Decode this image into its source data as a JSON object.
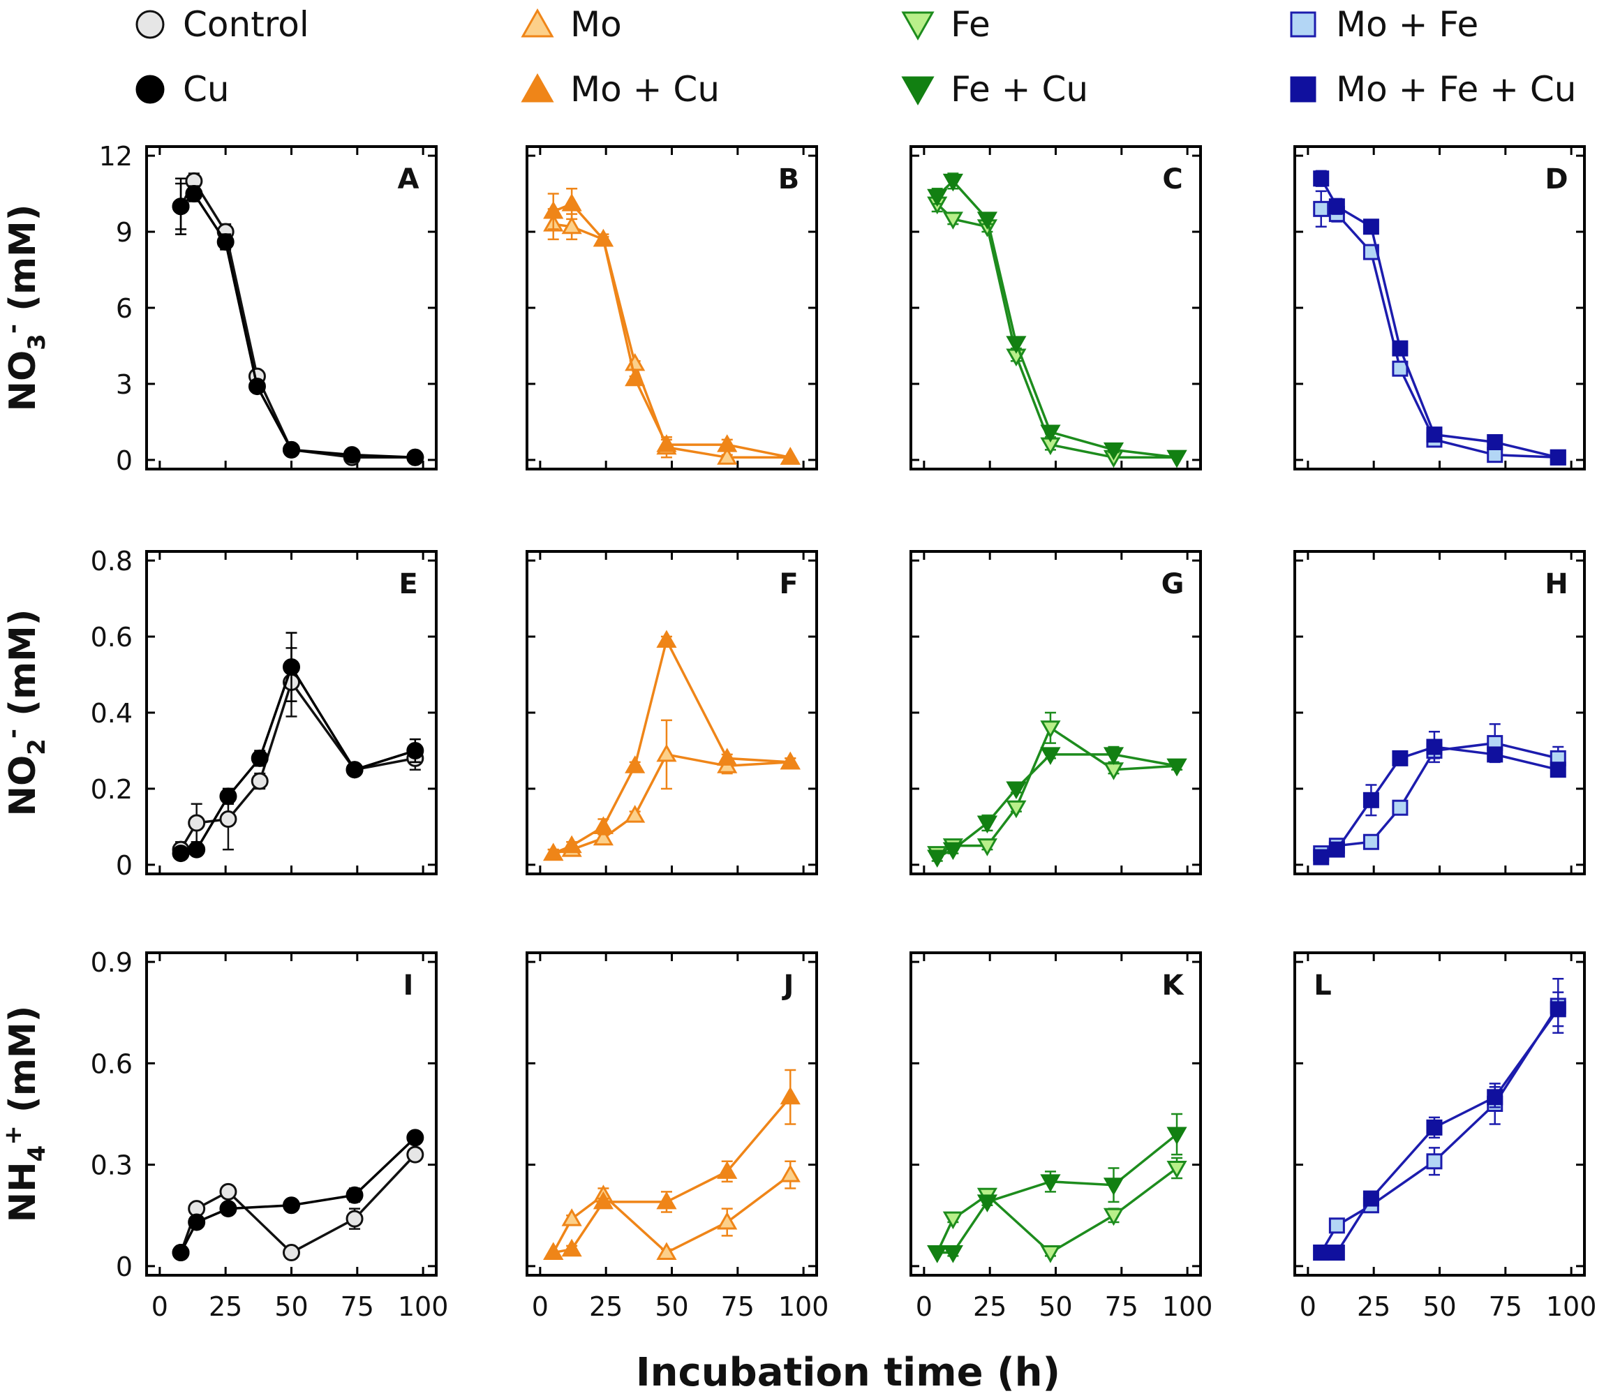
{
  "figure": {
    "xlabel": "Incubation time (h)",
    "row_labels": [
      {
        "main": "NO",
        "sub": "3",
        "sup": "-",
        "unit": " (mM)"
      },
      {
        "main": "NO",
        "sub": "2",
        "sup": "-",
        "unit": " (mM)"
      },
      {
        "main": "NH",
        "sub": "4",
        "sup": "+",
        "unit": " (mM)"
      }
    ]
  },
  "legend": [
    {
      "label": "Control",
      "marker": "circle",
      "fill": "#e6e6e6",
      "stroke": "#111111"
    },
    {
      "label": "Cu",
      "marker": "circle",
      "fill": "#000000",
      "stroke": "#000000"
    },
    {
      "label": "Mo",
      "marker": "triangle-up",
      "fill": "#fcd08a",
      "stroke": "#ef8518"
    },
    {
      "label": "Mo + Cu",
      "marker": "triangle-up",
      "fill": "#ef8518",
      "stroke": "#ef8518"
    },
    {
      "label": "Fe",
      "marker": "triangle-down",
      "fill": "#b9ef8a",
      "stroke": "#1d8c1d"
    },
    {
      "label": "Fe + Cu",
      "marker": "triangle-down",
      "fill": "#128012",
      "stroke": "#128012"
    },
    {
      "label": "Mo + Fe",
      "marker": "square",
      "fill": "#b3d6f5",
      "stroke": "#1c1cad"
    },
    {
      "label": "Mo + Fe + Cu",
      "marker": "square",
      "fill": "#10109e",
      "stroke": "#10109e"
    }
  ],
  "colors": {
    "control_line": "#111111",
    "cu_line": "#000000",
    "mo_line": "#ef8518",
    "fe_line": "#1d8c1d",
    "mofe_line": "#1c1cad"
  },
  "chart_data": [
    {
      "type": "line",
      "panel": "A",
      "row": 0,
      "col": 0,
      "xlim": [
        0,
        100
      ],
      "ylim": [
        0,
        12
      ],
      "yticks": [
        0,
        3,
        6,
        9,
        12
      ],
      "xticks": [
        0,
        25,
        50,
        75,
        100
      ],
      "series": [
        {
          "name": "Control",
          "x": [
            8,
            13,
            25,
            37,
            50,
            73,
            97
          ],
          "y": [
            10.0,
            11.0,
            9.0,
            3.3,
            0.4,
            0.1,
            0.1
          ],
          "err": [
            0.9,
            0.3,
            0.3,
            0.1,
            0,
            0,
            0
          ]
        },
        {
          "name": "Cu",
          "x": [
            8,
            13,
            25,
            37,
            50,
            73,
            97
          ],
          "y": [
            10.0,
            10.5,
            8.6,
            2.9,
            0.4,
            0.2,
            0.1
          ],
          "err": [
            1.1,
            0.3,
            0.3,
            0.1,
            0,
            0,
            0
          ]
        }
      ]
    },
    {
      "type": "line",
      "panel": "B",
      "row": 0,
      "col": 1,
      "xlim": [
        0,
        100
      ],
      "ylim": [
        0,
        12
      ],
      "yticks": [
        0,
        3,
        6,
        9,
        12
      ],
      "xticks": [
        0,
        25,
        50,
        75,
        100
      ],
      "series": [
        {
          "name": "Mo",
          "x": [
            5,
            12,
            24,
            36,
            48,
            71,
            95
          ],
          "y": [
            9.3,
            9.2,
            8.7,
            3.8,
            0.5,
            0.1,
            0.1
          ],
          "err": [
            0.6,
            0.5,
            0.2,
            0.1,
            0.4,
            0.1,
            0
          ]
        },
        {
          "name": "Mo + Cu",
          "x": [
            5,
            12,
            24,
            36,
            48,
            71,
            95
          ],
          "y": [
            9.8,
            10.1,
            8.7,
            3.2,
            0.6,
            0.6,
            0.1
          ],
          "err": [
            0.7,
            0.6,
            0.1,
            0.1,
            0.2,
            0.2,
            0
          ]
        }
      ]
    },
    {
      "type": "line",
      "panel": "C",
      "row": 0,
      "col": 2,
      "xlim": [
        0,
        100
      ],
      "ylim": [
        0,
        12
      ],
      "yticks": [
        0,
        3,
        6,
        9,
        12
      ],
      "xticks": [
        0,
        25,
        50,
        75,
        100
      ],
      "series": [
        {
          "name": "Fe",
          "x": [
            5,
            11,
            24,
            35,
            48,
            72,
            96
          ],
          "y": [
            10.1,
            9.5,
            9.2,
            4.1,
            0.6,
            0.1,
            0.1
          ],
          "err": [
            0.3,
            0.2,
            0.2,
            0.2,
            0.2,
            0,
            0
          ]
        },
        {
          "name": "Fe + Cu",
          "x": [
            5,
            11,
            24,
            35,
            48,
            72,
            96
          ],
          "y": [
            10.4,
            11.0,
            9.5,
            4.6,
            1.1,
            0.4,
            0.1
          ],
          "err": [
            0.3,
            0.3,
            0.2,
            0.2,
            0.2,
            0.1,
            0
          ]
        }
      ]
    },
    {
      "type": "line",
      "panel": "D",
      "row": 0,
      "col": 3,
      "xlim": [
        0,
        100
      ],
      "ylim": [
        0,
        12
      ],
      "yticks": [
        0,
        3,
        6,
        9,
        12
      ],
      "xticks": [
        0,
        25,
        50,
        75,
        100
      ],
      "series": [
        {
          "name": "Mo + Fe",
          "x": [
            5,
            11,
            24,
            35,
            48,
            71,
            95
          ],
          "y": [
            9.9,
            9.7,
            8.2,
            3.6,
            0.8,
            0.2,
            0.1
          ],
          "err": [
            0.7,
            0.3,
            0.2,
            0.2,
            0.1,
            0.1,
            0
          ]
        },
        {
          "name": "Mo + Fe + Cu",
          "x": [
            5,
            11,
            24,
            35,
            48,
            71,
            95
          ],
          "y": [
            11.1,
            10.0,
            9.2,
            4.4,
            1.0,
            0.7,
            0.1
          ],
          "err": [
            0.3,
            0.3,
            0.2,
            0.1,
            0.1,
            0.1,
            0
          ]
        }
      ]
    },
    {
      "type": "line",
      "panel": "E",
      "row": 1,
      "col": 0,
      "xlim": [
        0,
        100
      ],
      "ylim": [
        0,
        0.8
      ],
      "yticks": [
        0,
        0.2,
        0.4,
        0.6,
        0.8
      ],
      "xticks": [
        0,
        25,
        50,
        75,
        100
      ],
      "series": [
        {
          "name": "Control",
          "x": [
            8,
            14,
            26,
            38,
            50,
            74,
            97
          ],
          "y": [
            0.04,
            0.11,
            0.12,
            0.22,
            0.48,
            0.25,
            0.28
          ],
          "err": [
            0.02,
            0.05,
            0.08,
            0.02,
            0.09,
            0.01,
            0.03
          ]
        },
        {
          "name": "Cu",
          "x": [
            8,
            14,
            26,
            38,
            50,
            74,
            97
          ],
          "y": [
            0.03,
            0.04,
            0.18,
            0.28,
            0.52,
            0.25,
            0.3
          ],
          "err": [
            0.01,
            0.01,
            0.02,
            0.02,
            0.09,
            0.01,
            0.03
          ]
        }
      ]
    },
    {
      "type": "line",
      "panel": "F",
      "row": 1,
      "col": 1,
      "xlim": [
        0,
        100
      ],
      "ylim": [
        0,
        0.8
      ],
      "yticks": [
        0,
        0.2,
        0.4,
        0.6,
        0.8
      ],
      "xticks": [
        0,
        25,
        50,
        75,
        100
      ],
      "series": [
        {
          "name": "Mo",
          "x": [
            5,
            12,
            24,
            36,
            48,
            71,
            95
          ],
          "y": [
            0.03,
            0.04,
            0.07,
            0.13,
            0.29,
            0.26,
            0.27
          ],
          "err": [
            0.01,
            0.01,
            0.01,
            0.01,
            0.09,
            0.02,
            0.01
          ]
        },
        {
          "name": "Mo + Cu",
          "x": [
            5,
            12,
            24,
            36,
            48,
            71,
            95
          ],
          "y": [
            0.03,
            0.05,
            0.1,
            0.26,
            0.59,
            0.28,
            0.27
          ],
          "err": [
            0.01,
            0.01,
            0.02,
            0.01,
            0.01,
            0.01,
            0.01
          ]
        }
      ]
    },
    {
      "type": "line",
      "panel": "G",
      "row": 1,
      "col": 2,
      "xlim": [
        0,
        100
      ],
      "ylim": [
        0,
        0.8
      ],
      "yticks": [
        0,
        0.2,
        0.4,
        0.6,
        0.8
      ],
      "xticks": [
        0,
        25,
        50,
        75,
        100
      ],
      "series": [
        {
          "name": "Fe",
          "x": [
            5,
            11,
            24,
            35,
            48,
            72,
            96
          ],
          "y": [
            0.03,
            0.05,
            0.05,
            0.15,
            0.36,
            0.25,
            0.26
          ],
          "err": [
            0.01,
            0.01,
            0.01,
            0.01,
            0.04,
            0.01,
            0.01
          ]
        },
        {
          "name": "Fe + Cu",
          "x": [
            5,
            11,
            24,
            35,
            48,
            72,
            96
          ],
          "y": [
            0.02,
            0.04,
            0.11,
            0.2,
            0.29,
            0.29,
            0.26
          ],
          "err": [
            0.01,
            0.01,
            0.02,
            0.01,
            0.01,
            0.02,
            0.01
          ]
        }
      ]
    },
    {
      "type": "line",
      "panel": "H",
      "row": 1,
      "col": 3,
      "xlim": [
        0,
        100
      ],
      "ylim": [
        0,
        0.8
      ],
      "yticks": [
        0,
        0.2,
        0.4,
        0.6,
        0.8
      ],
      "xticks": [
        0,
        25,
        50,
        75,
        100
      ],
      "series": [
        {
          "name": "Mo + Fe",
          "x": [
            5,
            11,
            24,
            35,
            48,
            71,
            95
          ],
          "y": [
            0.03,
            0.05,
            0.06,
            0.15,
            0.3,
            0.32,
            0.28
          ],
          "err": [
            0.01,
            0.01,
            0.01,
            0.01,
            0.02,
            0.05,
            0.03
          ]
        },
        {
          "name": "Mo + Fe + Cu",
          "x": [
            5,
            11,
            24,
            35,
            48,
            71,
            95
          ],
          "y": [
            0.02,
            0.04,
            0.17,
            0.28,
            0.31,
            0.29,
            0.25
          ],
          "err": [
            0.01,
            0.01,
            0.04,
            0.01,
            0.04,
            0.01,
            0.01
          ]
        }
      ]
    },
    {
      "type": "line",
      "panel": "I",
      "row": 2,
      "col": 0,
      "xlim": [
        0,
        100
      ],
      "ylim": [
        0,
        0.9
      ],
      "yticks": [
        0,
        0.3,
        0.6,
        0.9
      ],
      "xticks": [
        0,
        25,
        50,
        75,
        100
      ],
      "series": [
        {
          "name": "Control",
          "x": [
            8,
            14,
            26,
            50,
            74,
            97
          ],
          "y": [
            0.04,
            0.17,
            0.22,
            0.04,
            0.14,
            0.33
          ],
          "err": [
            0,
            0.01,
            0.01,
            0.01,
            0.03,
            0.01
          ]
        },
        {
          "name": "Cu",
          "x": [
            8,
            14,
            26,
            50,
            74,
            97
          ],
          "y": [
            0.04,
            0.13,
            0.17,
            0.18,
            0.21,
            0.38
          ],
          "err": [
            0,
            0.01,
            0.01,
            0.01,
            0.02,
            0.01
          ]
        }
      ]
    },
    {
      "type": "line",
      "panel": "J",
      "row": 2,
      "col": 1,
      "xlim": [
        0,
        100
      ],
      "ylim": [
        0,
        0.9
      ],
      "yticks": [
        0,
        0.3,
        0.6,
        0.9
      ],
      "xticks": [
        0,
        25,
        50,
        75,
        100
      ],
      "series": [
        {
          "name": "Mo",
          "x": [
            5,
            12,
            24,
            48,
            71,
            95
          ],
          "y": [
            0.04,
            0.14,
            0.21,
            0.04,
            0.13,
            0.27
          ],
          "err": [
            0,
            0.01,
            0.02,
            0.01,
            0.04,
            0.04
          ]
        },
        {
          "name": "Mo + Cu",
          "x": [
            5,
            12,
            24,
            48,
            71,
            95
          ],
          "y": [
            0.04,
            0.05,
            0.19,
            0.19,
            0.28,
            0.5
          ],
          "err": [
            0,
            0.01,
            0.01,
            0.03,
            0.03,
            0.08
          ]
        }
      ]
    },
    {
      "type": "line",
      "panel": "K",
      "row": 2,
      "col": 2,
      "xlim": [
        0,
        100
      ],
      "ylim": [
        0,
        0.9
      ],
      "yticks": [
        0,
        0.3,
        0.6,
        0.9
      ],
      "xticks": [
        0,
        25,
        50,
        75,
        100
      ],
      "series": [
        {
          "name": "Fe",
          "x": [
            5,
            11,
            24,
            48,
            72,
            96
          ],
          "y": [
            0.04,
            0.14,
            0.21,
            0.04,
            0.15,
            0.29
          ],
          "err": [
            0,
            0.01,
            0.01,
            0.01,
            0.02,
            0.03
          ]
        },
        {
          "name": "Fe + Cu",
          "x": [
            5,
            11,
            24,
            48,
            72,
            96
          ],
          "y": [
            0.04,
            0.04,
            0.19,
            0.25,
            0.24,
            0.39
          ],
          "err": [
            0,
            0.01,
            0.01,
            0.03,
            0.05,
            0.06
          ]
        }
      ]
    },
    {
      "type": "line",
      "panel": "L",
      "row": 2,
      "col": 3,
      "xlim": [
        0,
        100
      ],
      "ylim": [
        0,
        0.9
      ],
      "yticks": [
        0,
        0.3,
        0.6,
        0.9
      ],
      "xticks": [
        0,
        25,
        50,
        75,
        100
      ],
      "series": [
        {
          "name": "Mo + Fe",
          "x": [
            5,
            11,
            24,
            48,
            71,
            95
          ],
          "y": [
            0.04,
            0.12,
            0.18,
            0.31,
            0.48,
            0.77
          ],
          "err": [
            0,
            0.02,
            0.01,
            0.04,
            0.06,
            0.08
          ]
        },
        {
          "name": "Mo + Fe + Cu",
          "x": [
            5,
            11,
            24,
            48,
            71,
            95
          ],
          "y": [
            0.04,
            0.04,
            0.2,
            0.41,
            0.5,
            0.76
          ],
          "err": [
            0,
            0.01,
            0.01,
            0.03,
            0.03,
            0.05
          ]
        }
      ]
    }
  ]
}
